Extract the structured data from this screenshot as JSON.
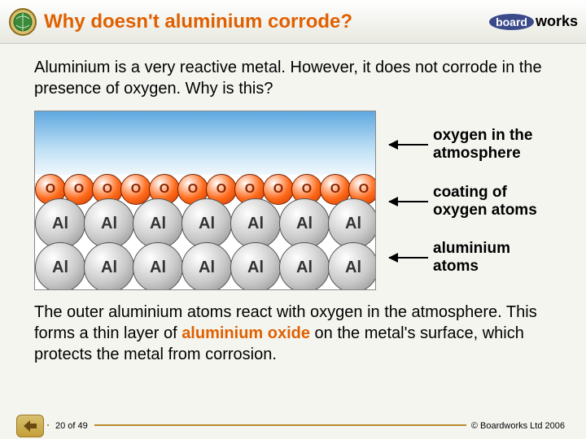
{
  "header": {
    "title": "Why doesn't aluminium corrode?",
    "title_color": "#e06000",
    "logo_prefix": "board",
    "logo_suffix": "works",
    "icon_globe_colors": {
      "fill": "#3a8a3a",
      "stroke": "#8a6a1a"
    }
  },
  "content": {
    "intro": "Aluminium is a very reactive metal. However, it does not corrode in the presence of oxygen. Why is this?",
    "outro_prefix": "The outer aluminium atoms react with oxygen in the atmosphere. This forms a thin layer of ",
    "outro_highlight": "aluminium oxide",
    "outro_highlight_color": "#e06000",
    "outro_suffix": " on the metal's surface, which protects the metal from corrosion."
  },
  "diagram": {
    "labels": [
      "oxygen in the atmosphere",
      "coating of oxygen atoms",
      "aluminium atoms"
    ],
    "label_fontsize": 19,
    "sky_gradient": [
      "#5fa8e0",
      "#bfe0f5",
      "#f0f8fc"
    ],
    "oxygen": {
      "count": 12,
      "symbol": "O",
      "colors": {
        "light": "#ffffff",
        "mid": "#ff6a1a",
        "dark": "#cc3a00",
        "border": "#772200",
        "text": "#8b2500"
      },
      "diameter": 38
    },
    "aluminium": {
      "rows": 2,
      "per_row": 7,
      "symbol": "Al",
      "colors": {
        "light": "#ffffff",
        "mid": "#c8c8c8",
        "dark": "#888888",
        "border": "#555555",
        "text": "#333333"
      },
      "diameter": 62
    }
  },
  "footer": {
    "page": "20 of 49",
    "copyright": "© Boardworks Ltd 2006",
    "line_color": "#b88a2a"
  }
}
